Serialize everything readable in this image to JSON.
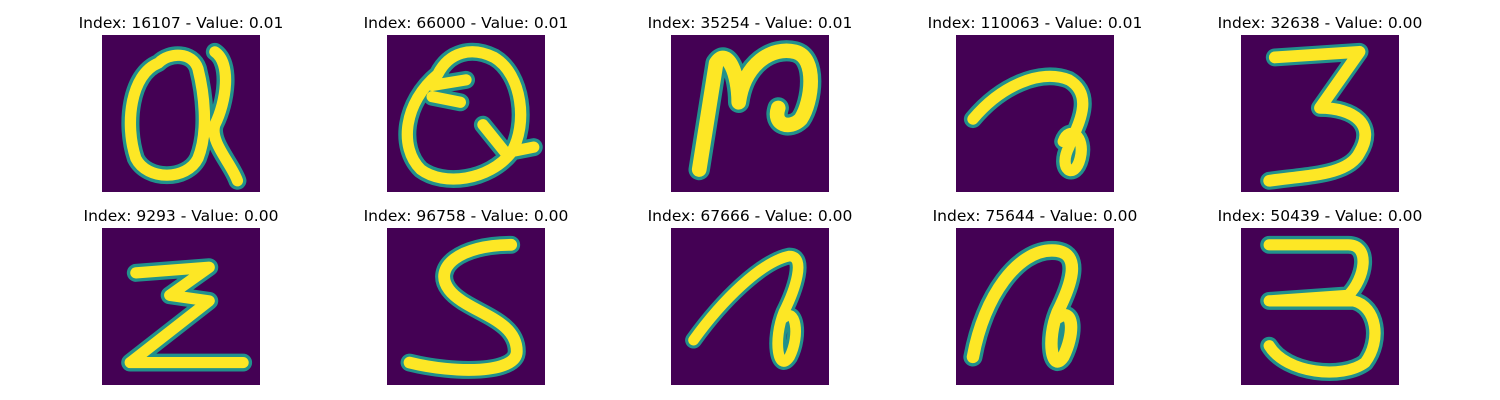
{
  "figure": {
    "background_color": "#440154",
    "stroke_color": "#fde725",
    "edge_color": "#21918c",
    "panels": [
      {
        "title": "Index: 16107 - Value: 0.01",
        "glyph": "Q"
      },
      {
        "title": "Index: 66000 - Value: 0.01",
        "glyph": "Q"
      },
      {
        "title": "Index: 35254 - Value: 0.01",
        "glyph": "N"
      },
      {
        "title": "Index: 110063 - Value: 0.01",
        "glyph": "a"
      },
      {
        "title": "Index: 32638 - Value: 0.00",
        "glyph": "3"
      },
      {
        "title": "Index: 9293 - Value: 0.00",
        "glyph": "Z"
      },
      {
        "title": "Index: 96758 - Value: 0.00",
        "glyph": "S"
      },
      {
        "title": "Index: 67666 - Value: 0.00",
        "glyph": "a"
      },
      {
        "title": "Index: 75644 - Value: 0.00",
        "glyph": "a"
      },
      {
        "title": "Index: 50439 - Value: 0.00",
        "glyph": "3"
      }
    ]
  }
}
